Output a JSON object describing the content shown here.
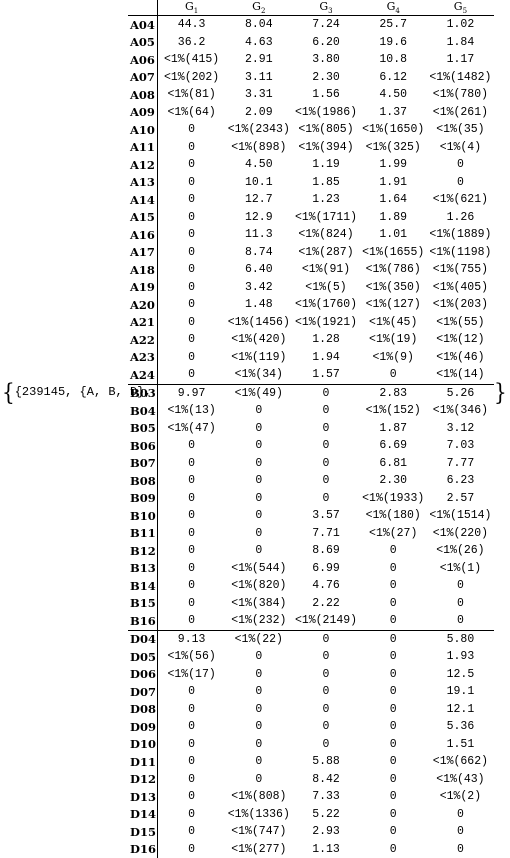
{
  "prefix_text": "{239145, {A, B, D},",
  "headers": [
    "G1",
    "G2",
    "G3",
    "G4",
    "G5"
  ],
  "groups": [
    {
      "rows": [
        [
          "A04",
          "44.3",
          "8.04",
          "7.24",
          "25.7",
          "1.02"
        ],
        [
          "A05",
          "36.2",
          "4.63",
          "6.20",
          "19.6",
          "1.84"
        ],
        [
          "A06",
          "<1%(415)",
          "2.91",
          "3.80",
          "10.8",
          "1.17"
        ],
        [
          "A07",
          "<1%(202)",
          "3.11",
          "2.30",
          "6.12",
          "<1%(1482)"
        ],
        [
          "A08",
          "<1%(81)",
          "3.31",
          "1.56",
          "4.50",
          "<1%(780)"
        ],
        [
          "A09",
          "<1%(64)",
          "2.09",
          "<1%(1986)",
          "1.37",
          "<1%(261)"
        ],
        [
          "A10",
          "0",
          "<1%(2343)",
          "<1%(805)",
          "<1%(1650)",
          "<1%(35)"
        ],
        [
          "A11",
          "0",
          "<1%(898)",
          "<1%(394)",
          "<1%(325)",
          "<1%(4)"
        ],
        [
          "A12",
          "0",
          "4.50",
          "1.19",
          "1.99",
          "0"
        ],
        [
          "A13",
          "0",
          "10.1",
          "1.85",
          "1.91",
          "0"
        ],
        [
          "A14",
          "0",
          "12.7",
          "1.23",
          "1.64",
          "<1%(621)"
        ],
        [
          "A15",
          "0",
          "12.9",
          "<1%(1711)",
          "1.89",
          "1.26"
        ],
        [
          "A16",
          "0",
          "11.3",
          "<1%(824)",
          "1.01",
          "<1%(1889)"
        ],
        [
          "A17",
          "0",
          "8.74",
          "<1%(287)",
          "<1%(1655)",
          "<1%(1198)"
        ],
        [
          "A18",
          "0",
          "6.40",
          "<1%(91)",
          "<1%(786)",
          "<1%(755)"
        ],
        [
          "A19",
          "0",
          "3.42",
          "<1%(5)",
          "<1%(350)",
          "<1%(405)"
        ],
        [
          "A20",
          "0",
          "1.48",
          "<1%(1760)",
          "<1%(127)",
          "<1%(203)"
        ],
        [
          "A21",
          "0",
          "<1%(1456)",
          "<1%(1921)",
          "<1%(45)",
          "<1%(55)"
        ],
        [
          "A22",
          "0",
          "<1%(420)",
          "1.28",
          "<1%(19)",
          "<1%(12)"
        ],
        [
          "A23",
          "0",
          "<1%(119)",
          "1.94",
          "<1%(9)",
          "<1%(46)"
        ],
        [
          "A24",
          "0",
          "<1%(34)",
          "1.57",
          "0",
          "<1%(14)"
        ]
      ]
    },
    {
      "rows": [
        [
          "B03",
          "9.97",
          "<1%(49)",
          "0",
          "2.83",
          "5.26"
        ],
        [
          "B04",
          "<1%(13)",
          "0",
          "0",
          "<1%(152)",
          "<1%(346)"
        ],
        [
          "B05",
          "<1%(47)",
          "0",
          "0",
          "1.87",
          "3.12"
        ],
        [
          "B06",
          "0",
          "0",
          "0",
          "6.69",
          "7.03"
        ],
        [
          "B07",
          "0",
          "0",
          "0",
          "6.81",
          "7.77"
        ],
        [
          "B08",
          "0",
          "0",
          "0",
          "2.30",
          "6.23"
        ],
        [
          "B09",
          "0",
          "0",
          "0",
          "<1%(1933)",
          "2.57"
        ],
        [
          "B10",
          "0",
          "0",
          "3.57",
          "<1%(180)",
          "<1%(1514)"
        ],
        [
          "B11",
          "0",
          "0",
          "7.71",
          "<1%(27)",
          "<1%(220)"
        ],
        [
          "B12",
          "0",
          "0",
          "8.69",
          "0",
          "<1%(26)"
        ],
        [
          "B13",
          "0",
          "<1%(544)",
          "6.99",
          "0",
          "<1%(1)"
        ],
        [
          "B14",
          "0",
          "<1%(820)",
          "4.76",
          "0",
          "0"
        ],
        [
          "B15",
          "0",
          "<1%(384)",
          "2.22",
          "0",
          "0"
        ],
        [
          "B16",
          "0",
          "<1%(232)",
          "<1%(2149)",
          "0",
          "0"
        ]
      ]
    },
    {
      "rows": [
        [
          "D04",
          "9.13",
          "<1%(22)",
          "0",
          "0",
          "5.80"
        ],
        [
          "D05",
          "<1%(56)",
          "0",
          "0",
          "0",
          "1.93"
        ],
        [
          "D06",
          "<1%(17)",
          "0",
          "0",
          "0",
          "12.5"
        ],
        [
          "D07",
          "0",
          "0",
          "0",
          "0",
          "19.1"
        ],
        [
          "D08",
          "0",
          "0",
          "0",
          "0",
          "12.1"
        ],
        [
          "D09",
          "0",
          "0",
          "0",
          "0",
          "5.36"
        ],
        [
          "D10",
          "0",
          "0",
          "0",
          "0",
          "1.51"
        ],
        [
          "D11",
          "0",
          "0",
          "5.88",
          "0",
          "<1%(662)"
        ],
        [
          "D12",
          "0",
          "0",
          "8.42",
          "0",
          "<1%(43)"
        ],
        [
          "D13",
          "0",
          "<1%(808)",
          "7.33",
          "0",
          "<1%(2)"
        ],
        [
          "D14",
          "0",
          "<1%(1336)",
          "5.22",
          "0",
          "0"
        ],
        [
          "D15",
          "0",
          "<1%(747)",
          "2.93",
          "0",
          "0"
        ],
        [
          "D16",
          "0",
          "<1%(277)",
          "1.13",
          "0",
          "0"
        ]
      ]
    }
  ]
}
